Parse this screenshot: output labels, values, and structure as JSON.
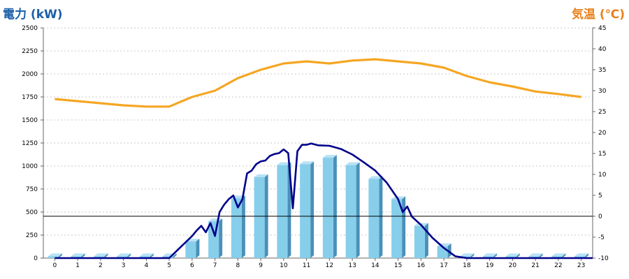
{
  "chart_data": {
    "type": "bar",
    "title_left": "電力 (kW)",
    "title_right": "気温 (℃)",
    "categories": [
      "0",
      "1",
      "2",
      "3",
      "4",
      "5",
      "6",
      "7",
      "8",
      "9",
      "10",
      "11",
      "12",
      "13",
      "14",
      "15",
      "16",
      "17",
      "18",
      "19",
      "20",
      "21",
      "22",
      "23"
    ],
    "left_axis": {
      "range": [
        0,
        2500
      ],
      "ticks": [
        0,
        250,
        500,
        750,
        1000,
        1250,
        1500,
        1750,
        2000,
        2250,
        2500
      ]
    },
    "right_axis": {
      "range": [
        -10,
        45
      ],
      "ticks": [
        -10,
        -5,
        0,
        5,
        10,
        15,
        20,
        25,
        30,
        35,
        40,
        45
      ]
    },
    "grid": true,
    "series": [
      {
        "type": "bar",
        "axis": "left",
        "color": "#87ceeb",
        "values": [
          20,
          20,
          20,
          20,
          20,
          20,
          180,
          400,
          650,
          880,
          1010,
          1020,
          1090,
          1010,
          860,
          640,
          350,
          130,
          20,
          20,
          20,
          20,
          20,
          20
        ]
      },
      {
        "type": "line",
        "axis": "left",
        "color": "#00008b",
        "x": [
          0,
          5,
          5.5,
          6,
          6.2,
          6.4,
          6.6,
          6.8,
          7,
          7.2,
          7.4,
          7.6,
          7.8,
          8,
          8.2,
          8.4,
          8.6,
          8.8,
          9,
          9.2,
          9.4,
          9.6,
          9.8,
          10,
          10.2,
          10.4,
          10.6,
          10.8,
          11,
          11.2,
          11.5,
          12,
          12.5,
          13,
          13.5,
          14,
          14.5,
          15,
          15.2,
          15.4,
          15.6,
          16,
          16.5,
          17,
          17.5,
          18,
          23.5
        ],
        "y": [
          0,
          0,
          120,
          240,
          300,
          350,
          280,
          380,
          240,
          500,
          580,
          640,
          680,
          550,
          640,
          920,
          950,
          1020,
          1050,
          1060,
          1110,
          1130,
          1140,
          1180,
          1140,
          540,
          1160,
          1230,
          1230,
          1245,
          1225,
          1220,
          1185,
          1125,
          1040,
          950,
          820,
          640,
          500,
          560,
          450,
          360,
          220,
          110,
          20,
          0,
          0
        ]
      },
      {
        "type": "line",
        "axis": "right",
        "color": "#f5a623",
        "values": [
          28,
          27.5,
          27,
          26.5,
          26.2,
          26.2,
          28.5,
          30,
          33,
          35,
          36.5,
          37,
          36.5,
          37.2,
          37.5,
          37,
          36.5,
          35.5,
          33.5,
          32,
          31,
          29.8,
          29.2,
          28.5
        ]
      }
    ],
    "reference_line": {
      "axis": "right",
      "value": 0
    }
  }
}
